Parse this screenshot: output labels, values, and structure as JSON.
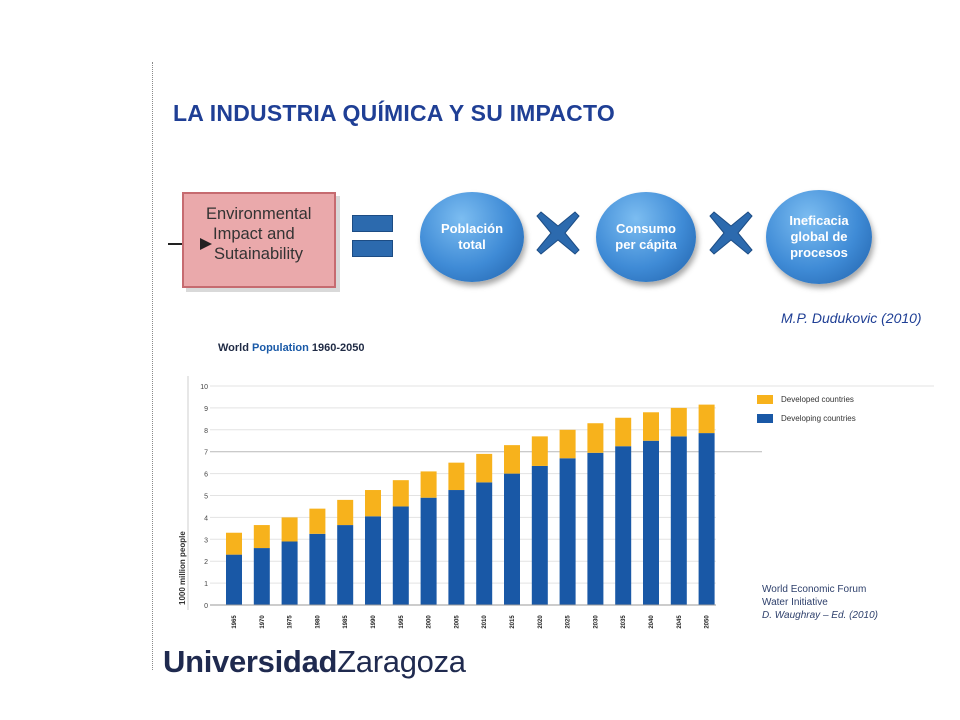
{
  "slide": {
    "title": "LA INDUSTRIA QUÍMICA Y SU IMPACTO",
    "env_box": [
      "Environmental",
      "Impact and",
      "Sutainability"
    ],
    "factors": [
      {
        "lines": [
          "Población",
          "total"
        ]
      },
      {
        "lines": [
          "Consumo",
          "per cápita"
        ]
      },
      {
        "lines": [
          "Ineficacia",
          "global de",
          "procesos"
        ]
      }
    ],
    "citation": "M.P. Dudukovic (2010)",
    "source": [
      "World Economic Forum",
      "Water Initiative",
      "D. Waughray – Ed.  (2010)"
    ],
    "logo": {
      "bold": "Universidad",
      "regular": "Zaragoza"
    },
    "colors": {
      "title": "#1f3f95",
      "developed": "#f7b21c",
      "developing": "#1958a6"
    }
  },
  "chart_data": {
    "type": "bar",
    "stacked": true,
    "title_parts": [
      "World ",
      "Population",
      " 1960-2050"
    ],
    "ylabel": "1000 million people",
    "ylim": [
      0,
      10
    ],
    "yticks": [
      0,
      1,
      2,
      3,
      4,
      5,
      6,
      7,
      8,
      9,
      10
    ],
    "categories": [
      "1965",
      "1970",
      "1975",
      "1980",
      "1985",
      "1990",
      "1995",
      "2000",
      "2005",
      "2010",
      "2015",
      "2020",
      "2025",
      "2030",
      "2035",
      "2040",
      "2045",
      "2050"
    ],
    "series": [
      {
        "name": "Developing countries",
        "color": "#1958a6",
        "values": [
          2.3,
          2.6,
          2.9,
          3.25,
          3.65,
          4.05,
          4.5,
          4.9,
          5.25,
          5.6,
          6.0,
          6.35,
          6.7,
          6.95,
          7.25,
          7.5,
          7.7,
          7.85
        ]
      },
      {
        "name": "Developed countries",
        "color": "#f7b21c",
        "values": [
          1.0,
          1.05,
          1.1,
          1.15,
          1.15,
          1.2,
          1.2,
          1.2,
          1.25,
          1.3,
          1.3,
          1.35,
          1.3,
          1.35,
          1.3,
          1.3,
          1.3,
          1.3
        ]
      }
    ],
    "legend_position": "top-right",
    "grid": true
  }
}
